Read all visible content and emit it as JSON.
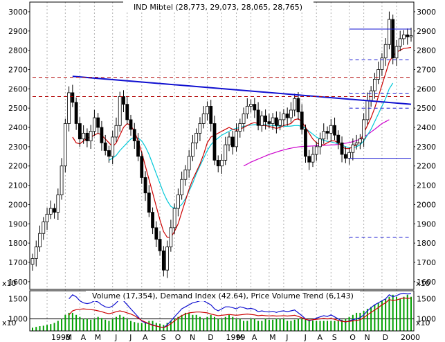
{
  "chart_data": [
    {
      "type": "candlestick",
      "title": "IND Mibtel (28,773, 29,073, 28,065, 28,765)",
      "y_scale_label": "x10",
      "ylim": [
        1560,
        3050
      ],
      "y_ticks": [
        1600,
        1700,
        1800,
        1900,
        2000,
        2100,
        2200,
        2300,
        2400,
        2500,
        2600,
        2700,
        2800,
        2900,
        3000
      ],
      "x_labels": [
        "1998",
        "M",
        "A",
        "M",
        "J",
        "J",
        "A",
        "S",
        "O",
        "N",
        "D",
        "1999",
        "M",
        "A",
        "M",
        "J",
        "J",
        "A",
        "S",
        "O",
        "N",
        "D",
        "2000"
      ],
      "weeks": 105,
      "month_starts": [
        4,
        9,
        13,
        17,
        22,
        26,
        30,
        35,
        39,
        43,
        48,
        52,
        56,
        60,
        65,
        69,
        74,
        78,
        82,
        87,
        91,
        96,
        100
      ],
      "close": [
        1720,
        1780,
        1850,
        1910,
        1950,
        1980,
        1960,
        2050,
        2200,
        2420,
        2580,
        2530,
        2420,
        2340,
        2370,
        2330,
        2380,
        2450,
        2400,
        2320,
        2280,
        2250,
        2350,
        2410,
        2560,
        2520,
        2440,
        2390,
        2330,
        2250,
        2140,
        2060,
        1960,
        1880,
        1820,
        1760,
        1660,
        1780,
        1880,
        1980,
        2050,
        2130,
        2180,
        2250,
        2320,
        2370,
        2420,
        2470,
        2510,
        2420,
        2230,
        2200,
        2230,
        2310,
        2350,
        2300,
        2380,
        2420,
        2470,
        2510,
        2520,
        2490,
        2410,
        2460,
        2430,
        2420,
        2450,
        2410,
        2440,
        2470,
        2450,
        2490,
        2550,
        2480,
        2390,
        2250,
        2220,
        2260,
        2300,
        2340,
        2380,
        2370,
        2410,
        2360,
        2320,
        2260,
        2240,
        2270,
        2310,
        2320,
        2340,
        2440,
        2540,
        2590,
        2650,
        2700,
        2760,
        2830,
        2960,
        2760,
        2820,
        2860,
        2880,
        2870,
        2876
      ],
      "ma_fast": [
        null,
        null,
        null,
        null,
        null,
        null,
        null,
        null,
        null,
        null,
        null,
        2350,
        2320,
        2315,
        2330,
        2345,
        2350,
        2360,
        2370,
        2360,
        2340,
        2320,
        2300,
        2320,
        2360,
        2400,
        2420,
        2410,
        2380,
        2330,
        2270,
        2200,
        2130,
        2060,
        1990,
        1920,
        1860,
        1830,
        1830,
        1860,
        1900,
        1960,
        2020,
        2080,
        2130,
        2170,
        2210,
        2260,
        2320,
        2350,
        2360,
        2370,
        2380,
        2390,
        2400,
        2390,
        2385,
        2390,
        2400,
        2410,
        2420,
        2425,
        2420,
        2410,
        2410,
        2405,
        2400,
        2395,
        2400,
        2410,
        2415,
        2420,
        2440,
        2445,
        2430,
        2400,
        2370,
        2340,
        2320,
        2310,
        2310,
        2320,
        2330,
        2330,
        2320,
        2300,
        2290,
        2290,
        2300,
        2310,
        2330,
        2370,
        2410,
        2450,
        2500,
        2560,
        2620,
        2680,
        2740,
        2770,
        2790,
        2800,
        2810,
        2812,
        2815
      ],
      "ma_medium": [
        null,
        null,
        null,
        null,
        null,
        null,
        null,
        null,
        null,
        null,
        null,
        null,
        null,
        null,
        null,
        null,
        null,
        null,
        null,
        null,
        null,
        2230,
        2240,
        2255,
        2280,
        2300,
        2320,
        2340,
        2350,
        2345,
        2330,
        2300,
        2260,
        2210,
        2160,
        2110,
        2060,
        2020,
        1990,
        1980,
        1985,
        2000,
        2030,
        2070,
        2110,
        2160,
        2200,
        2240,
        2280,
        2310,
        2330,
        2345,
        2360,
        2370,
        2380,
        2390,
        2395,
        2400,
        2405,
        2410,
        2412,
        2414,
        2415,
        2414,
        2413,
        2412,
        2410,
        2408,
        2407,
        2406,
        2406,
        2407,
        2410,
        2410,
        2405,
        2395,
        2380,
        2365,
        2350,
        2340,
        2333,
        2328,
        2325,
        2320,
        2315,
        2308,
        2300,
        2295,
        2295,
        2300,
        2310,
        2330,
        2360,
        2390,
        2430,
        2470,
        2510,
        2550,
        2600,
        2630
      ],
      "ma_slow": [
        null,
        null,
        null,
        null,
        null,
        null,
        null,
        null,
        null,
        null,
        null,
        null,
        null,
        null,
        null,
        null,
        null,
        null,
        null,
        null,
        null,
        null,
        null,
        null,
        null,
        null,
        null,
        null,
        null,
        null,
        null,
        null,
        null,
        null,
        null,
        null,
        null,
        null,
        null,
        null,
        null,
        null,
        null,
        null,
        null,
        null,
        null,
        null,
        null,
        null,
        null,
        null,
        null,
        null,
        null,
        null,
        null,
        null,
        2200,
        2210,
        2220,
        2228,
        2236,
        2244,
        2252,
        2260,
        2266,
        2272,
        2278,
        2283,
        2288,
        2292,
        2296,
        2299,
        2301,
        2302,
        2303,
        2304,
        2305,
        2306,
        2307,
        2308,
        2309,
        2310,
        2312,
        2315,
        2318,
        2322,
        2326,
        2332,
        2340,
        2350,
        2362,
        2376,
        2390,
        2405,
        2420,
        2430,
        2440
      ],
      "lines": [
        {
          "name": "trendline",
          "from_week": 11,
          "from_value": 2665,
          "to_week": 104,
          "to_value": 2520,
          "style": "solid",
          "color": "#1010d0"
        },
        {
          "name": "resistance-upper",
          "value": 2660,
          "from_week": 0,
          "to_week": 104,
          "style": "dashed",
          "color": "#b00000"
        },
        {
          "name": "resistance-lower",
          "value": 2560,
          "from_week": 0,
          "to_week": 104,
          "style": "dashed",
          "color": "#b00000"
        },
        {
          "name": "level-2910",
          "value": 2910,
          "from_week": 87,
          "to_week": 104,
          "style": "solid",
          "color": "#1010d0"
        },
        {
          "name": "level-2750",
          "value": 2750,
          "from_week": 87,
          "to_week": 104,
          "style": "dashed",
          "color": "#1010d0"
        },
        {
          "name": "level-2575",
          "value": 2575,
          "from_week": 87,
          "to_week": 104,
          "style": "dashed",
          "color": "#1010d0"
        },
        {
          "name": "level-2500",
          "value": 2500,
          "from_week": 87,
          "to_week": 104,
          "style": "dashed",
          "color": "#1010d0"
        },
        {
          "name": "level-2240",
          "value": 2240,
          "from_week": 87,
          "to_week": 104,
          "style": "solid",
          "color": "#1010d0"
        },
        {
          "name": "level-1830",
          "value": 1830,
          "from_week": 87,
          "to_week": 104,
          "style": "dashed",
          "color": "#1010d0"
        }
      ],
      "colors": {
        "candle": "#000000",
        "ma_fast": "#cc0000",
        "ma_medium": "#00c8d8",
        "ma_slow": "#cc00cc",
        "grid": "#b0b0b0",
        "trend": "#1010d0"
      }
    },
    {
      "type": "bar+line",
      "title": "Volume (17,354), Demand Index (42.64), Price Volume Trend (6,143)",
      "y_scale_label": "x10",
      "ylim": [
        700,
        1700
      ],
      "y_ticks": [
        1000,
        1500
      ],
      "reference_line": 1000,
      "volume": [
        780,
        800,
        820,
        830,
        850,
        870,
        900,
        950,
        1000,
        1100,
        1150,
        1150,
        1100,
        1050,
        1000,
        1000,
        980,
        1000,
        1050,
        1020,
        980,
        950,
        1000,
        1050,
        1100,
        1050,
        1000,
        950,
        920,
        900,
        900,
        920,
        950,
        950,
        900,
        880,
        850,
        900,
        950,
        1000,
        1050,
        1100,
        1150,
        1150,
        1100,
        1100,
        1050,
        1000,
        1050,
        1100,
        1050,
        1000,
        1000,
        1050,
        1100,
        1050,
        1000,
        1000,
        950,
        950,
        1000,
        1000,
        950,
        950,
        1000,
        980,
        980,
        1000,
        1000,
        1000,
        950,
        950,
        980,
        1000,
        1000,
        1000,
        980,
        960,
        950,
        950,
        950,
        950,
        950,
        950,
        950,
        980,
        1000,
        1050,
        1100,
        1150,
        1150,
        1200,
        1250,
        1300,
        1350,
        1400,
        1450,
        1500,
        1550,
        1600,
        1550,
        1500,
        1550,
        1600,
        1550
      ],
      "demand_index": [
        null,
        null,
        null,
        null,
        null,
        null,
        null,
        null,
        null,
        null,
        1500,
        1600,
        1550,
        1450,
        1400,
        1380,
        1400,
        1450,
        1420,
        1350,
        1300,
        1280,
        1320,
        1400,
        1500,
        1450,
        1350,
        1250,
        1150,
        1050,
        950,
        900,
        880,
        850,
        820,
        800,
        780,
        850,
        950,
        1050,
        1150,
        1250,
        1300,
        1350,
        1400,
        1420,
        1450,
        1450,
        1400,
        1350,
        1250,
        1200,
        1250,
        1300,
        1300,
        1280,
        1250,
        1300,
        1280,
        1250,
        1260,
        1240,
        1180,
        1200,
        1180,
        1170,
        1190,
        1160,
        1190,
        1200,
        1180,
        1200,
        1220,
        1150,
        1080,
        1000,
        950,
        980,
        1020,
        1050,
        1080,
        1060,
        1100,
        1050,
        1000,
        950,
        920,
        950,
        980,
        1000,
        1030,
        1100,
        1200,
        1280,
        1350,
        1400,
        1450,
        1500,
        1600,
        1550,
        1580,
        1620,
        1640,
        1620,
        1630
      ],
      "pvt": [
        null,
        null,
        null,
        null,
        null,
        null,
        null,
        null,
        null,
        null,
        1100,
        1200,
        1230,
        1240,
        1250,
        1240,
        1230,
        1220,
        1200,
        1180,
        1150,
        1130,
        1150,
        1180,
        1200,
        1180,
        1150,
        1120,
        1080,
        1020,
        960,
        920,
        880,
        840,
        820,
        800,
        780,
        820,
        880,
        950,
        1020,
        1080,
        1120,
        1150,
        1160,
        1170,
        1170,
        1160,
        1150,
        1120,
        1100,
        1080,
        1090,
        1100,
        1110,
        1100,
        1090,
        1100,
        1110,
        1120,
        1110,
        1100,
        1080,
        1090,
        1080,
        1075,
        1080,
        1070,
        1075,
        1080,
        1070,
        1080,
        1090,
        1060,
        1030,
        990,
        970,
        980,
        990,
        1000,
        1010,
        1000,
        1010,
        990,
        960,
        940,
        930,
        940,
        950,
        960,
        980,
        1030,
        1100,
        1160,
        1220,
        1280,
        1350,
        1400,
        1480,
        1460,
        1470,
        1500,
        1520,
        1510,
        1515
      ],
      "colors": {
        "volume": "#00a000",
        "demand_index": "#1010d0",
        "pvt": "#cc0000"
      }
    }
  ]
}
